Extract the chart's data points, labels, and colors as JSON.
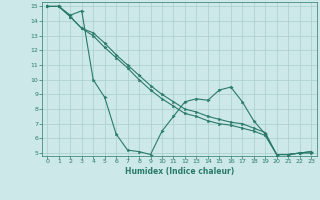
{
  "xlabel": "Humidex (Indice chaleur)",
  "xlim": [
    -0.5,
    23.5
  ],
  "ylim": [
    4.8,
    15.3
  ],
  "yticks": [
    5,
    6,
    7,
    8,
    9,
    10,
    11,
    12,
    13,
    14,
    15
  ],
  "xticks": [
    0,
    1,
    2,
    3,
    4,
    5,
    6,
    7,
    8,
    9,
    10,
    11,
    12,
    13,
    14,
    15,
    16,
    17,
    18,
    19,
    20,
    21,
    22,
    23
  ],
  "line_color": "#2a7a6a",
  "bg_color": "#cce8e8",
  "grid_color": "#aacece",
  "line1_x": [
    0,
    1,
    2,
    3,
    4,
    5,
    6,
    7,
    8,
    9,
    10,
    11,
    12,
    13,
    14,
    15,
    16,
    17,
    18,
    19,
    20,
    21,
    22,
    23
  ],
  "line1_y": [
    15,
    15,
    14.4,
    14.7,
    10.0,
    8.8,
    6.3,
    5.2,
    5.1,
    4.9,
    6.5,
    7.5,
    8.5,
    8.7,
    8.6,
    9.3,
    9.5,
    8.5,
    7.2,
    6.3,
    4.9,
    4.9,
    5.0,
    5.1
  ],
  "line2_x": [
    0,
    1,
    2,
    3,
    4,
    5,
    6,
    7,
    8,
    9,
    10,
    11,
    12,
    13,
    14,
    15,
    16,
    17,
    18,
    19,
    20,
    21,
    22,
    23
  ],
  "line2_y": [
    15,
    15,
    14.3,
    13.5,
    13.2,
    12.5,
    11.7,
    11.0,
    10.3,
    9.6,
    9.0,
    8.5,
    8.0,
    7.8,
    7.5,
    7.3,
    7.1,
    7.0,
    6.7,
    6.4,
    4.9,
    4.9,
    5.0,
    5.1
  ],
  "line3_x": [
    0,
    1,
    2,
    3,
    4,
    5,
    6,
    7,
    8,
    9,
    10,
    11,
    12,
    13,
    14,
    15,
    16,
    17,
    18,
    19,
    20,
    21,
    22,
    23
  ],
  "line3_y": [
    15,
    15,
    14.3,
    13.5,
    13.0,
    12.2,
    11.5,
    10.8,
    10.0,
    9.3,
    8.7,
    8.2,
    7.7,
    7.5,
    7.2,
    7.0,
    6.9,
    6.7,
    6.5,
    6.2,
    4.9,
    4.9,
    5.0,
    5.0
  ]
}
